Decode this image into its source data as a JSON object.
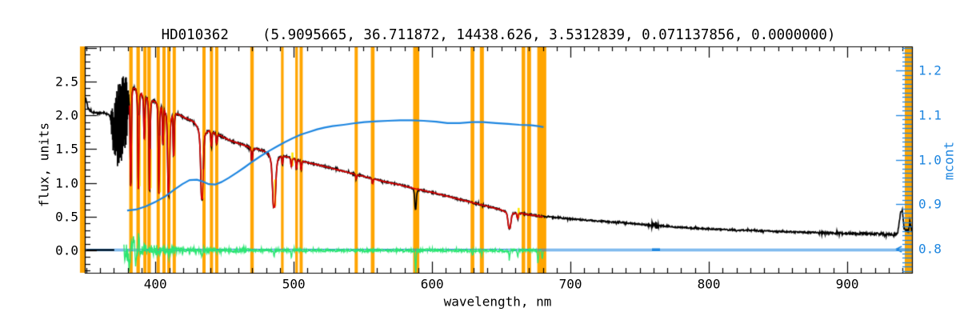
{
  "title": "HD010362    (5.9095665, 36.711872, 14438.626, 3.5312839, 0.071137856, 0.0000000)",
  "colors": {
    "background": "#ffffff",
    "frame": "#000000",
    "spectrum": "#000000",
    "model_fit": "#e00000",
    "model_alt": "#ffe800",
    "residual": "#2ce673",
    "mcont": "#1e86e0",
    "mask": "#ffa500"
  },
  "axes": {
    "x": {
      "label": "wavelength, nm",
      "range": [
        349,
        946.8
      ],
      "major_ticks": [
        400,
        500,
        600,
        700,
        800,
        900
      ],
      "tick_labels": [
        "400",
        "500",
        "600",
        "700",
        "800",
        "900"
      ],
      "minor_step": 10
    },
    "y_left": {
      "label": "flux, units",
      "range": [
        -0.33,
        3.02
      ],
      "major_ticks": [
        0,
        0.5,
        1,
        1.5,
        2,
        2.5
      ],
      "tick_labels": [
        "0.0",
        "0.5",
        "1.0",
        "1.5",
        "2.0",
        "2.5"
      ],
      "minor_step": 0.1
    },
    "y_right": {
      "label": "mcont",
      "range": [
        0.746,
        1.256
      ],
      "major_ticks": [
        0.8,
        0.9,
        1,
        1.1,
        1.2
      ],
      "tick_labels": [
        "0.8",
        "0.9",
        "1.0",
        "1.1",
        "1.2"
      ],
      "minor_step": 0.01
    }
  },
  "chart_data": {
    "type": "line",
    "title": "HD010362    (5.9095665, 36.711872, 14438.626, 3.5312839, 0.071137856, 0.0000000)",
    "xlabel": "wavelength, nm",
    "ylabel_left": "flux, units",
    "ylabel_right": "mcont",
    "x_range": [
      349,
      946.8
    ],
    "series": [
      {
        "name": "observed spectrum",
        "role": "data",
        "color_key": "spectrum",
        "continuum": [
          [
            349.6,
            2.26
          ],
          [
            350.4,
            2.18
          ],
          [
            351.5,
            2.1
          ],
          [
            353,
            2.06
          ],
          [
            356,
            2.04
          ],
          [
            359.4,
            2.03
          ],
          [
            362.9,
            2.04
          ],
          [
            365.8,
            2.01
          ],
          [
            367.5,
            1.99
          ],
          [
            380.9,
            2.3
          ],
          [
            383.1,
            2.43
          ],
          [
            392.4,
            2.3
          ],
          [
            399.3,
            2.21
          ],
          [
            405.7,
            2.15
          ],
          [
            411.4,
            2.07
          ],
          [
            416.1,
            2.02
          ],
          [
            421.8,
            1.96
          ],
          [
            427.6,
            1.91
          ],
          [
            433.4,
            1.86
          ],
          [
            439.2,
            1.78
          ],
          [
            445,
            1.72
          ],
          [
            450.8,
            1.66
          ],
          [
            456.5,
            1.61
          ],
          [
            462.3,
            1.57
          ],
          [
            468.1,
            1.53
          ],
          [
            473.9,
            1.5
          ],
          [
            479.7,
            1.47
          ],
          [
            485.4,
            1.45
          ],
          [
            492.9,
            1.4
          ],
          [
            501.6,
            1.35
          ],
          [
            510.3,
            1.3
          ],
          [
            519,
            1.26
          ],
          [
            530.5,
            1.2
          ],
          [
            542.1,
            1.14
          ],
          [
            553.7,
            1.08
          ],
          [
            565.2,
            1.02
          ],
          [
            576.8,
            0.97
          ],
          [
            588.4,
            0.91
          ],
          [
            599.9,
            0.86
          ],
          [
            611.5,
            0.8
          ],
          [
            623.1,
            0.74
          ],
          [
            634.6,
            0.68
          ],
          [
            646.2,
            0.62
          ],
          [
            657.7,
            0.575
          ],
          [
            669.3,
            0.53
          ],
          [
            680.9,
            0.5
          ],
          [
            692.4,
            0.48
          ],
          [
            704,
            0.46
          ],
          [
            715.6,
            0.44
          ],
          [
            727.1,
            0.425
          ],
          [
            738.7,
            0.41
          ],
          [
            750.2,
            0.39
          ],
          [
            761.8,
            0.37
          ],
          [
            773.4,
            0.35
          ],
          [
            784.9,
            0.335
          ],
          [
            796.5,
            0.32
          ],
          [
            808,
            0.31
          ],
          [
            819.6,
            0.3
          ],
          [
            831.2,
            0.295
          ],
          [
            842.7,
            0.285
          ],
          [
            854.3,
            0.277
          ],
          [
            865.8,
            0.27
          ],
          [
            883.2,
            0.26
          ],
          [
            900.5,
            0.252
          ],
          [
            917.9,
            0.246
          ],
          [
            929.4,
            0.242
          ],
          [
            935.2,
            0.24
          ],
          [
            936.4,
            0.25
          ],
          [
            937.5,
            0.4
          ],
          [
            938.7,
            0.58
          ],
          [
            939.8,
            0.6
          ],
          [
            941,
            0.34
          ],
          [
            942.1,
            0.28
          ],
          [
            943.3,
            0.32
          ],
          [
            944.4,
            0.28
          ],
          [
            945.3,
            0.44
          ],
          [
            946.2,
            0.33
          ],
          [
            946.8,
            0.28
          ]
        ],
        "noise_regions": [
          [
            349.6,
            367.5,
            0.013
          ],
          [
            380.9,
            420,
            0.024
          ],
          [
            420,
            500,
            0.017
          ],
          [
            500,
            680,
            0.013
          ],
          [
            680,
            754,
            0.011
          ],
          [
            754,
            758,
            0.018
          ],
          [
            758,
            764,
            0.055
          ],
          [
            764,
            768,
            0.018
          ],
          [
            768,
            880,
            0.011
          ],
          [
            880,
            920,
            0.016
          ],
          [
            920,
            947,
            0.02
          ]
        ],
        "balmer_jump_oscillation": {
          "range": [
            367.5,
            380.9
          ],
          "envelope": [
            [
              367.5,
              1.92,
              2.06
            ],
            [
              369,
              1.5,
              2.12
            ],
            [
              370.5,
              1.28,
              2.2
            ],
            [
              372,
              1.22,
              2.35
            ],
            [
              373.5,
              1.24,
              2.5
            ],
            [
              375,
              1.27,
              2.62
            ],
            [
              376.5,
              1.32,
              2.7
            ],
            [
              378,
              1.45,
              2.67
            ],
            [
              379.2,
              1.62,
              2.58
            ],
            [
              380.2,
              1.85,
              2.48
            ],
            [
              380.9,
              2.1,
              2.3
            ]
          ]
        }
      },
      {
        "name": "model fit",
        "role": "fit",
        "color_key": "model_fit",
        "range_nm": [
          381.3,
          680.3
        ]
      },
      {
        "name": "second model (under fit)",
        "role": "fit-alt",
        "color_key": "model_alt",
        "tick_marks": [
          [
            387.8,
            0.95,
            2.0
          ],
          [
            395.8,
            0.92,
            1.5
          ],
          [
            402.6,
            0.86,
            1.7
          ],
          [
            409.6,
            0.84,
            1.9
          ],
          [
            433.7,
            0.78,
            1.2
          ],
          [
            485.8,
            0.66,
            1.05
          ],
          [
            498.3,
            1.25,
            1.45
          ],
          [
            661.8,
            0.49,
            0.63
          ]
        ]
      },
      {
        "name": "residual (obs - fit)",
        "role": "residual",
        "color_key": "residual",
        "baseline": 0,
        "range_nm": [
          377.3,
          680.3
        ],
        "noise_profile": [
          [
            377.3,
            383,
            0.16
          ],
          [
            383,
            390,
            0.12
          ],
          [
            390,
            402,
            0.08
          ],
          [
            402,
            415,
            0.055
          ],
          [
            415,
            440,
            0.04
          ],
          [
            440,
            470,
            0.03
          ],
          [
            470,
            680.3,
            0.022
          ]
        ],
        "spikes": [
          [
            381,
            -0.24
          ],
          [
            384.5,
            0.2
          ],
          [
            386,
            -0.2
          ],
          [
            388,
            0.15
          ],
          [
            409.6,
            -0.12
          ],
          [
            433.7,
            -0.1
          ],
          [
            485.8,
            -0.08
          ],
          [
            498.3,
            -0.08
          ],
          [
            588,
            -0.3
          ],
          [
            629.2,
            -0.06
          ],
          [
            636,
            -0.08
          ],
          [
            655.9,
            -0.13
          ],
          [
            661.8,
            -0.09
          ],
          [
            676.5,
            -0.2
          ],
          [
            679.5,
            -0.12
          ]
        ]
      },
      {
        "name": "mcont",
        "role": "continuum-mask",
        "color_key": "mcont",
        "axis": "right",
        "points": [
          [
            379.6,
            0.886
          ],
          [
            386,
            0.888
          ],
          [
            393,
            0.895
          ],
          [
            400.5,
            0.906
          ],
          [
            407.4,
            0.918
          ],
          [
            413.8,
            0.933
          ],
          [
            419.5,
            0.945
          ],
          [
            424.7,
            0.954
          ],
          [
            430,
            0.955
          ],
          [
            434,
            0.951
          ],
          [
            438.6,
            0.945
          ],
          [
            443.2,
            0.944
          ],
          [
            448,
            0.95
          ],
          [
            453,
            0.959
          ],
          [
            459,
            0.971
          ],
          [
            464.6,
            0.983
          ],
          [
            470.4,
            0.996
          ],
          [
            476.2,
            1.008
          ],
          [
            482,
            1.019
          ],
          [
            487.7,
            1.029
          ],
          [
            493.5,
            1.039
          ],
          [
            499.3,
            1.048
          ],
          [
            505.1,
            1.056
          ],
          [
            511,
            1.062
          ],
          [
            517,
            1.068
          ],
          [
            522.5,
            1.072
          ],
          [
            528,
            1.075
          ],
          [
            536,
            1.078
          ],
          [
            545,
            1.082
          ],
          [
            551,
            1.084
          ],
          [
            560,
            1.086
          ],
          [
            568,
            1.087
          ],
          [
            577,
            1.088
          ],
          [
            585,
            1.088
          ],
          [
            594,
            1.087
          ],
          [
            603,
            1.085
          ],
          [
            611,
            1.082
          ],
          [
            620,
            1.082
          ],
          [
            629,
            1.084
          ],
          [
            637,
            1.084
          ],
          [
            646,
            1.082
          ],
          [
            655,
            1.08
          ],
          [
            663,
            1.078
          ],
          [
            672,
            1.077
          ],
          [
            676.5,
            1.075
          ],
          [
            680.5,
            1.073
          ]
        ]
      }
    ],
    "absorption_lines": [
      [
        382.2,
        0.95,
        0.35,
        0.9,
        1
      ],
      [
        387.8,
        0.92,
        0.35,
        0.9,
        1
      ],
      [
        392,
        1.65,
        0.35,
        0.9,
        1
      ],
      [
        395.8,
        0.9,
        0.35,
        0.9,
        1
      ],
      [
        402.6,
        0.84,
        0.35,
        0.9,
        1
      ],
      [
        405.5,
        1.58,
        0.35,
        0.9,
        1
      ],
      [
        409.6,
        0.82,
        0.6,
        2,
        1
      ],
      [
        413.2,
        1.4,
        0.35,
        0.9,
        1
      ],
      [
        433.7,
        0.76,
        0.8,
        2.5,
        1
      ],
      [
        440.5,
        1.55,
        0.35,
        0.9,
        1
      ],
      [
        444.3,
        1.58,
        0.35,
        0.9,
        1
      ],
      [
        469.8,
        1.33,
        0.4,
        1.2,
        1
      ],
      [
        485.8,
        0.64,
        1.0,
        3,
        1
      ],
      [
        491.8,
        1.28,
        0.3,
        0.8,
        1
      ],
      [
        498.3,
        1.24,
        0.3,
        0.8,
        1
      ],
      [
        502,
        1.21,
        0.3,
        0.8,
        1
      ],
      [
        505.4,
        1.19,
        0.3,
        0.8,
        1
      ],
      [
        545.2,
        1.06,
        0.3,
        0.8,
        1
      ],
      [
        557,
        0.99,
        0.3,
        0.8,
        1
      ],
      [
        588,
        0.62,
        0.5,
        1.2,
        0
      ],
      [
        629.2,
        0.74,
        0.4,
        1,
        1
      ],
      [
        636,
        0.68,
        0.4,
        1,
        1
      ],
      [
        655.9,
        0.33,
        0.9,
        3,
        1
      ],
      [
        661.8,
        0.47,
        0.4,
        1,
        1
      ],
      [
        670,
        0.53,
        0.3,
        0.8,
        1
      ],
      [
        678.5,
        0.5,
        0.3,
        0.8,
        1
      ]
    ],
    "mask_bands_nm": [
      [
        345.5,
        349.6
      ],
      [
        381.1,
        383.6
      ],
      [
        386.3,
        388.8
      ],
      [
        391.3,
        393.6
      ],
      [
        394.2,
        396.7
      ],
      [
        400.9,
        403.2
      ],
      [
        405.1,
        407.4
      ],
      [
        408.6,
        410.9
      ],
      [
        412.5,
        414.8
      ],
      [
        434,
        436.3
      ],
      [
        439.4,
        441.7
      ],
      [
        443.2,
        445.5
      ],
      [
        468.6,
        471.1
      ],
      [
        490.8,
        492.7
      ],
      [
        501.1,
        503
      ],
      [
        504.2,
        506.5
      ],
      [
        544,
        546.3
      ],
      [
        555.7,
        558.4
      ],
      [
        586.3,
        590.7
      ],
      [
        627.8,
        630.5
      ],
      [
        634.5,
        637.4
      ],
      [
        664.7,
        667.3
      ],
      [
        668.6,
        671.5
      ],
      [
        676,
        682.5
      ],
      [
        941.6,
        946.8
      ]
    ],
    "annotations": {
      "flux_zero_line": 0,
      "mcont_base_line": 0.8,
      "unfitted_zero_segment_nm": [
        349.9,
        370.3
      ],
      "thick_dash_nm": [
        758.9,
        764.7
      ],
      "left_arrow_nm": [
        935.3,
        945.1
      ]
    }
  }
}
